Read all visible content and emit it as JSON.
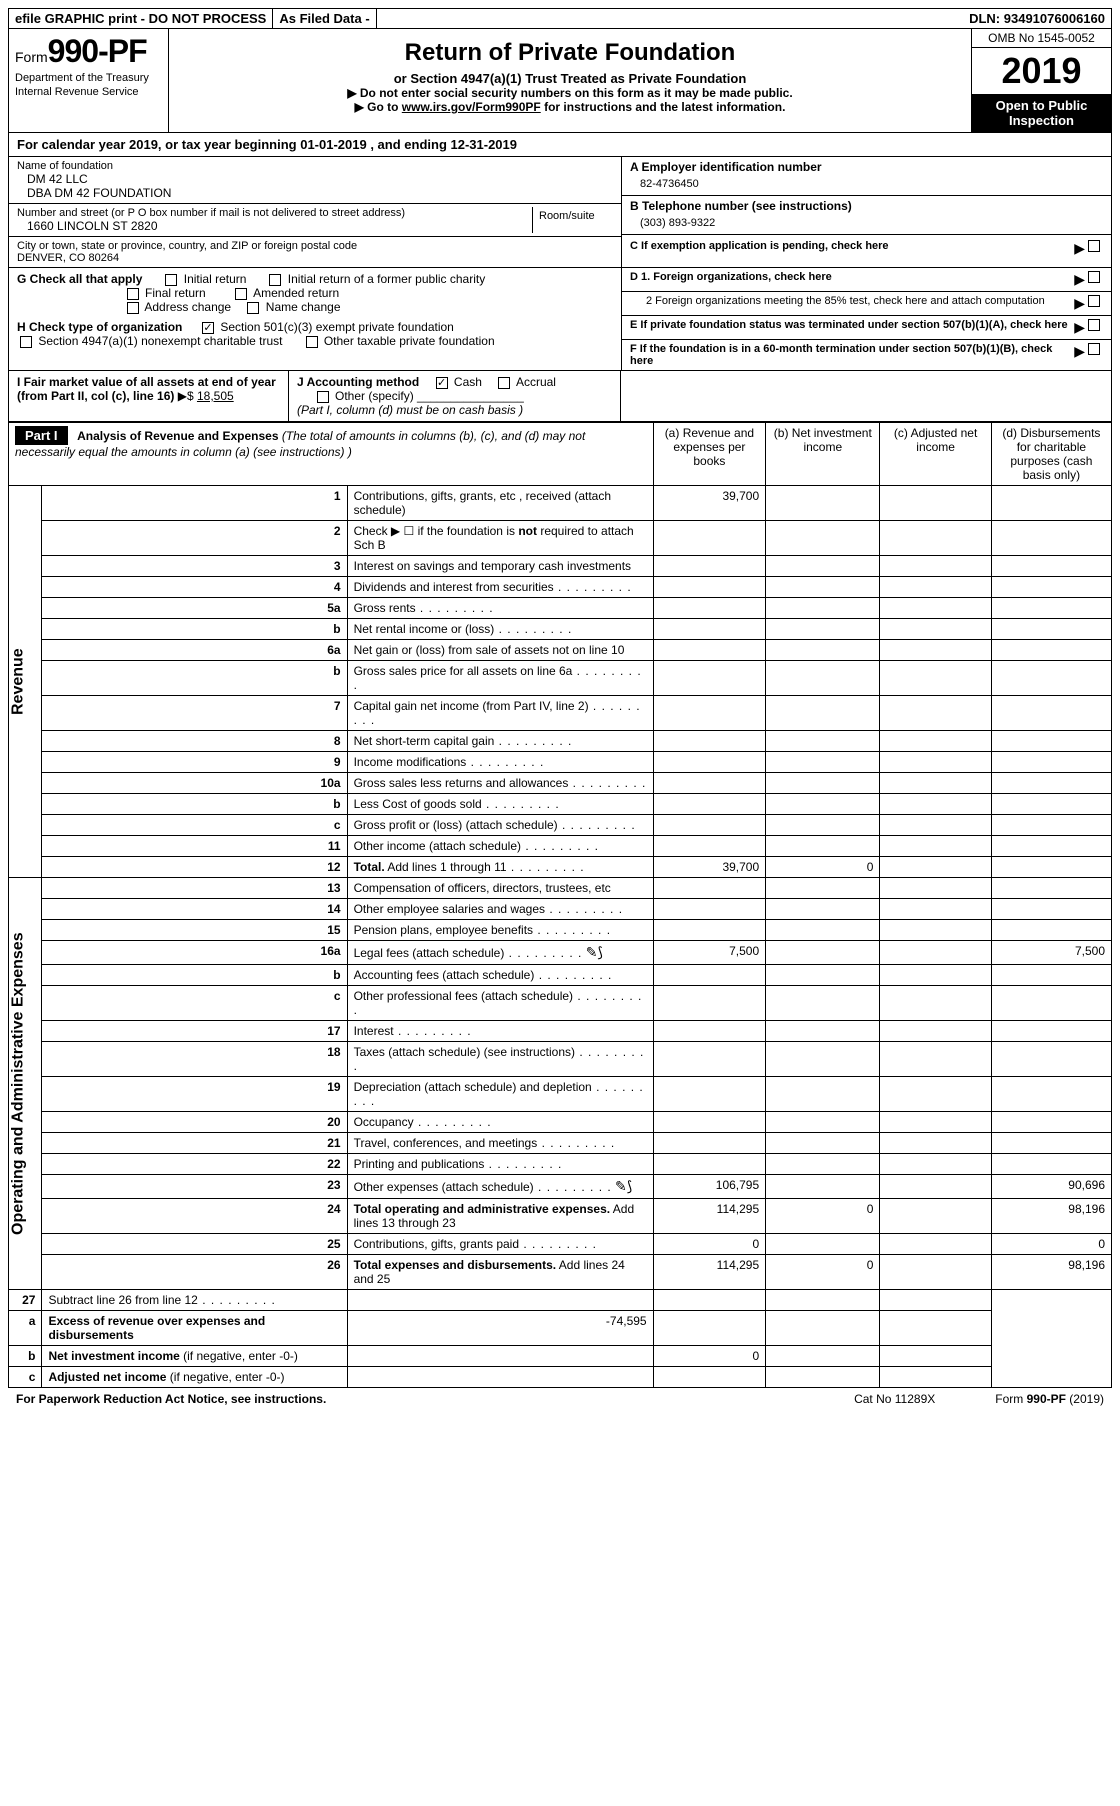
{
  "topbar": {
    "efile": "efile GRAPHIC print - DO NOT PROCESS",
    "asfiled": "As Filed Data -",
    "dln_label": "DLN:",
    "dln": "93491076006160"
  },
  "header": {
    "form_label": "Form",
    "form_num": "990-PF",
    "dept": "Department of the Treasury",
    "irs": "Internal Revenue Service",
    "title": "Return of Private Foundation",
    "subtitle": "or Section 4947(a)(1) Trust Treated as Private Foundation",
    "note1": "▶ Do not enter social security numbers on this form as it may be made public.",
    "note2_pre": "▶ Go to ",
    "note2_link": "www.irs.gov/Form990PF",
    "note2_post": " for instructions and the latest information.",
    "omb": "OMB No  1545-0052",
    "year": "2019",
    "inspect": "Open to Public Inspection"
  },
  "cal": "For calendar year 2019, or tax year beginning 01-01-2019             , and ending 12-31-2019",
  "info": {
    "name_lbl": "Name of foundation",
    "name1": "DM 42 LLC",
    "name2": "DBA DM 42 FOUNDATION",
    "addr_lbl": "Number and street (or P O  box number if mail is not delivered to street address)",
    "room_lbl": "Room/suite",
    "addr": "1660 LINCOLN ST 2820",
    "city_lbl": "City or town, state or province, country, and ZIP or foreign postal code",
    "city": "DENVER, CO  80264",
    "a_lbl": "A Employer identification number",
    "a_val": "82-4736450",
    "b_lbl": "B Telephone number (see instructions)",
    "b_val": "(303) 893-9322",
    "c_lbl": "C If exemption application is pending, check here",
    "d1": "D 1. Foreign organizations, check here",
    "d2": "2  Foreign organizations meeting the 85% test, check here and attach computation",
    "e": "E  If private foundation status was terminated under section 507(b)(1)(A), check here",
    "f": "F  If the foundation is in a 60-month termination under section 507(b)(1)(B), check here"
  },
  "checks": {
    "g_lbl": "G Check all that apply",
    "g_opts": [
      "Initial return",
      "Initial return of a former public charity",
      "Final return",
      "Amended return",
      "Address change",
      "Name change"
    ],
    "h_lbl": "H Check type of organization",
    "h_opts": [
      "Section 501(c)(3) exempt private foundation",
      "Section 4947(a)(1) nonexempt charitable trust",
      "Other taxable private foundation"
    ],
    "h_checked": 0,
    "i_lbl": "I Fair market value of all assets at end of year (from Part II, col  (c), line 16)",
    "i_val": "18,505",
    "j_lbl": "J Accounting method",
    "j_opts": [
      "Cash",
      "Accrual",
      "Other (specify)"
    ],
    "j_checked": 0,
    "j_note": "(Part I, column (d) must be on cash basis )"
  },
  "part1": {
    "label": "Part I",
    "title": "Analysis of Revenue and Expenses",
    "title_note": "(The total of amounts in columns (b), (c), and (d) may not necessarily equal the amounts in column (a) (see instructions) )",
    "cols": {
      "a": "(a)   Revenue and expenses per books",
      "b": "(b)   Net investment income",
      "c": "(c)   Adjusted net income",
      "d": "(d)   Disbursements for charitable purposes (cash basis only)"
    },
    "revenue_label": "Revenue",
    "expense_label": "Operating and Administrative Expenses",
    "rows": [
      {
        "n": "1",
        "d": "Contributions, gifts, grants, etc , received (attach schedule)",
        "a": "39,700"
      },
      {
        "n": "2",
        "d": "Check ▶ ☐ if the foundation is <b>not</b> required to attach Sch  B"
      },
      {
        "n": "3",
        "d": "Interest on savings and temporary cash investments"
      },
      {
        "n": "4",
        "d": "Dividends and interest from securities"
      },
      {
        "n": "5a",
        "d": "Gross rents"
      },
      {
        "n": "b",
        "d": "Net rental income or (loss)"
      },
      {
        "n": "6a",
        "d": "Net gain or (loss) from sale of assets not on line 10"
      },
      {
        "n": "b",
        "d": "Gross sales price for all assets on line 6a"
      },
      {
        "n": "7",
        "d": "Capital gain net income (from Part IV, line 2)"
      },
      {
        "n": "8",
        "d": "Net short-term capital gain"
      },
      {
        "n": "9",
        "d": "Income modifications"
      },
      {
        "n": "10a",
        "d": "Gross sales less returns and allowances"
      },
      {
        "n": "b",
        "d": "Less  Cost of goods sold"
      },
      {
        "n": "c",
        "d": "Gross profit or (loss) (attach schedule)"
      },
      {
        "n": "11",
        "d": "Other income (attach schedule)"
      },
      {
        "n": "12",
        "d": "<b>Total.</b> Add lines 1 through 11",
        "a": "39,700",
        "b": "0"
      }
    ],
    "exp_rows": [
      {
        "n": "13",
        "d": "Compensation of officers, directors, trustees, etc"
      },
      {
        "n": "14",
        "d": "Other employee salaries and wages"
      },
      {
        "n": "15",
        "d": "Pension plans, employee benefits"
      },
      {
        "n": "16a",
        "d": "Legal fees (attach schedule)",
        "icon": true,
        "a": "7,500",
        "dd": "7,500"
      },
      {
        "n": "b",
        "d": "Accounting fees (attach schedule)"
      },
      {
        "n": "c",
        "d": "Other professional fees (attach schedule)"
      },
      {
        "n": "17",
        "d": "Interest"
      },
      {
        "n": "18",
        "d": "Taxes (attach schedule) (see instructions)"
      },
      {
        "n": "19",
        "d": "Depreciation (attach schedule) and depletion"
      },
      {
        "n": "20",
        "d": "Occupancy"
      },
      {
        "n": "21",
        "d": "Travel, conferences, and meetings"
      },
      {
        "n": "22",
        "d": "Printing and publications"
      },
      {
        "n": "23",
        "d": "Other expenses (attach schedule)",
        "icon": true,
        "a": "106,795",
        "dd": "90,696"
      },
      {
        "n": "24",
        "d": "<b>Total operating and administrative expenses.</b> Add lines 13 through 23",
        "a": "114,295",
        "b": "0",
        "dd": "98,196"
      },
      {
        "n": "25",
        "d": "Contributions, gifts, grants paid",
        "a": "0",
        "dd": "0"
      },
      {
        "n": "26",
        "d": "<b>Total expenses and disbursements.</b> Add lines 24 and 25",
        "a": "114,295",
        "b": "0",
        "dd": "98,196"
      }
    ],
    "final_rows": [
      {
        "n": "27",
        "d": "Subtract line 26 from line 12"
      },
      {
        "n": "a",
        "d": "<b>Excess of revenue over expenses and disbursements</b>",
        "a": "-74,595"
      },
      {
        "n": "b",
        "d": "<b>Net investment income</b> (if negative, enter -0-)",
        "b": "0"
      },
      {
        "n": "c",
        "d": "<b>Adjusted net income</b> (if negative, enter -0-)"
      }
    ]
  },
  "footer": {
    "left": "For Paperwork Reduction Act Notice, see instructions.",
    "mid": "Cat  No  11289X",
    "right_pre": "Form ",
    "right_bold": "990-PF",
    "right_post": " (2019)"
  }
}
